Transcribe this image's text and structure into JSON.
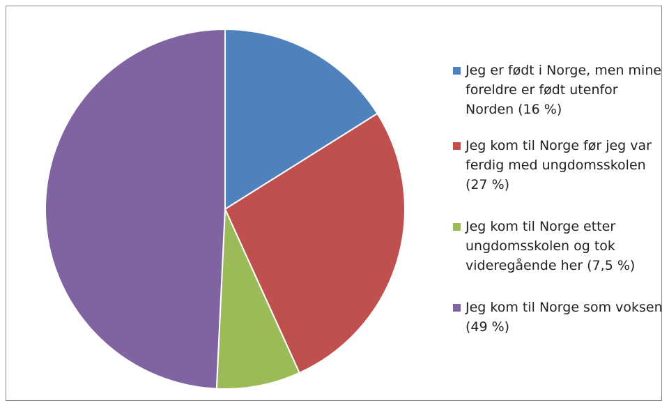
{
  "chart_data": {
    "type": "pie",
    "categories": [
      "Jeg er født i Norge, men mine foreldre er født utenfor Norden (16 %)",
      "Jeg kom til Norge før jeg var ferdig med ungdomsskolen (27 %)",
      "Jeg kom til Norge etter ungdomsskolen og tok videregående her (7,5 %)",
      "Jeg kom til Norge som voksen (49 %)"
    ],
    "values": [
      16,
      27,
      7.5,
      49
    ],
    "colors": [
      "#4f81bd",
      "#c0504d",
      "#9bbb59",
      "#8064a2"
    ],
    "legend": "right"
  }
}
